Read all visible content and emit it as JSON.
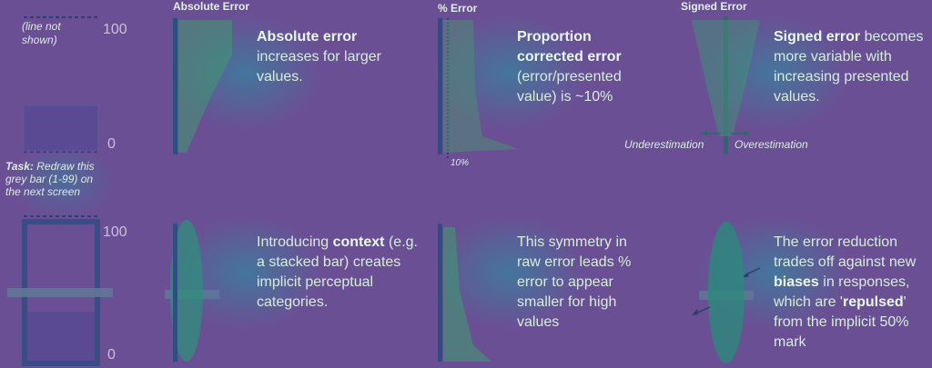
{
  "left": {
    "line_note": "(line not shown)",
    "tick_top": "100",
    "tick_zero": "0",
    "task_prefix": "Task:",
    "task_text": " Redraw this grey bar (1-99) on the next screen",
    "tick_top_2": "100",
    "tick_zero_2": "0"
  },
  "panels": [
    {
      "header": "Absolute Error",
      "lead_bold": "Absolute error",
      "lead_rest": " increases for larger values."
    },
    {
      "header": "% Error",
      "axis_note": "10%",
      "lead_bold": "Proportion corrected error",
      "lead_rest": " (error/presented value) is ~10%"
    },
    {
      "header": "Signed Error",
      "lead_bold": "Signed error",
      "lead_rest": " becomes more variable with increasing presented values.",
      "under_label": "Underestimation",
      "over_label": "Overestimation"
    }
  ],
  "bottom": [
    {
      "pre": "Introducing ",
      "bold": "context",
      "post": " (e.g. a stacked bar) creates implicit perceptual categories."
    },
    {
      "text": "This symmetry in raw error leads % error to appear smaller for high values"
    },
    {
      "pre": "The error reduction trades off against new ",
      "bold1": "biases",
      "mid": " in responses, which are '",
      "bold2": "repulsed",
      "post": "' from the implicit 50% mark"
    }
  ],
  "colors": {
    "background": "#6b4f95",
    "axis": "#2c4f82",
    "text": "#d6ecde",
    "teal": "#2aa38a",
    "bar": "#5c5196"
  }
}
